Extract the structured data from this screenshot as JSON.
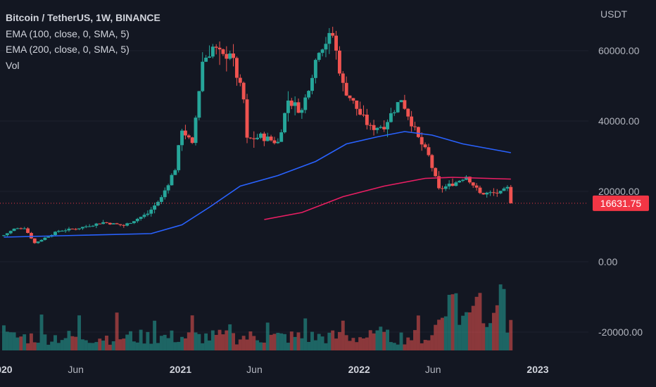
{
  "legend": {
    "symbol": "Bitcoin / TetherUS, 1W, BINANCE",
    "ema100": "EMA (100, close, 0, SMA, 5)",
    "ema200": "EMA (200, close, 0, SMA, 5)",
    "vol": "Vol"
  },
  "colors": {
    "background": "#131722",
    "up": "#26a69a",
    "down": "#ef5350",
    "ema100": "#2962ff",
    "ema200": "#e91e63",
    "price_tag": "#f23645"
  },
  "chart_data": {
    "type": "candlestick",
    "currency_label": "USDT",
    "last_price": "16631.75",
    "price_axis": {
      "ticks": [
        "60000.00",
        "40000.00",
        "20000.00",
        "0.00",
        "-20000.00"
      ]
    },
    "x_ticks": [
      {
        "label": "2020",
        "bold": true
      },
      {
        "label": "Jun",
        "bold": false
      },
      {
        "label": "2021",
        "bold": true
      },
      {
        "label": "Jun",
        "bold": false
      },
      {
        "label": "2022",
        "bold": true
      },
      {
        "label": "Jun",
        "bold": false
      },
      {
        "label": "2023",
        "bold": true
      }
    ],
    "candles": [
      {
        "t": "2020-01-06",
        "c": 7550
      },
      {
        "t": "2020-01-27",
        "c": 9300
      },
      {
        "t": "2020-02-17",
        "c": 9700
      },
      {
        "t": "2020-03-09",
        "c": 5300
      },
      {
        "t": "2020-03-16",
        "c": 5800
      },
      {
        "t": "2020-04-27",
        "c": 8800
      },
      {
        "t": "2020-06-01",
        "c": 9400
      },
      {
        "t": "2020-07-27",
        "c": 11200
      },
      {
        "t": "2020-09-07",
        "c": 10300
      },
      {
        "t": "2020-10-26",
        "c": 13700
      },
      {
        "t": "2020-11-23",
        "c": 18200
      },
      {
        "t": "2020-12-21",
        "c": 26500
      },
      {
        "t": "2021-01-04",
        "c": 38000
      },
      {
        "t": "2021-01-25",
        "c": 33000
      },
      {
        "t": "2021-02-15",
        "c": 57000
      },
      {
        "t": "2021-03-08",
        "c": 61000
      },
      {
        "t": "2021-03-29",
        "c": 58000
      },
      {
        "t": "2021-04-12",
        "c": 60000
      },
      {
        "t": "2021-05-10",
        "c": 46000
      },
      {
        "t": "2021-05-17",
        "c": 34600
      },
      {
        "t": "2021-06-14",
        "c": 35600
      },
      {
        "t": "2021-07-19",
        "c": 33900
      },
      {
        "t": "2021-08-09",
        "c": 46000
      },
      {
        "t": "2021-09-06",
        "c": 42800
      },
      {
        "t": "2021-10-11",
        "c": 60900
      },
      {
        "t": "2021-11-08",
        "c": 64400
      },
      {
        "t": "2021-11-29",
        "c": 50000
      },
      {
        "t": "2022-01-03",
        "c": 42000
      },
      {
        "t": "2022-01-24",
        "c": 38000
      },
      {
        "t": "2022-02-21",
        "c": 38800
      },
      {
        "t": "2022-03-28",
        "c": 46500
      },
      {
        "t": "2022-05-02",
        "c": 35000
      },
      {
        "t": "2022-05-23",
        "c": 30000
      },
      {
        "t": "2022-06-13",
        "c": 20500
      },
      {
        "t": "2022-07-18",
        "c": 22600
      },
      {
        "t": "2022-08-08",
        "c": 24400
      },
      {
        "t": "2022-09-05",
        "c": 19400
      },
      {
        "t": "2022-10-17",
        "c": 19600
      },
      {
        "t": "2022-10-31",
        "c": 20900
      },
      {
        "t": "2022-11-07",
        "c": 16631.75
      }
    ],
    "ema100": [
      {
        "t": "2020-01-06",
        "v": 7000
      },
      {
        "t": "2020-06-01",
        "v": 7500
      },
      {
        "t": "2020-11-02",
        "v": 8000
      },
      {
        "t": "2021-01-04",
        "v": 10500
      },
      {
        "t": "2021-03-01",
        "v": 15500
      },
      {
        "t": "2021-05-03",
        "v": 21500
      },
      {
        "t": "2021-07-19",
        "v": 24500
      },
      {
        "t": "2021-10-04",
        "v": 28500
      },
      {
        "t": "2021-12-06",
        "v": 33500
      },
      {
        "t": "2022-02-07",
        "v": 35500
      },
      {
        "t": "2022-04-04",
        "v": 37000
      },
      {
        "t": "2022-05-30",
        "v": 36000
      },
      {
        "t": "2022-08-01",
        "v": 33500
      },
      {
        "t": "2022-11-07",
        "v": 31000
      }
    ],
    "ema200": [
      {
        "t": "2021-06-21",
        "v": 12000
      },
      {
        "t": "2021-09-06",
        "v": 14000
      },
      {
        "t": "2021-11-29",
        "v": 18500
      },
      {
        "t": "2022-02-21",
        "v": 21500
      },
      {
        "t": "2022-05-16",
        "v": 23700
      },
      {
        "t": "2022-07-11",
        "v": 24000
      },
      {
        "t": "2022-11-07",
        "v": 23500
      }
    ]
  }
}
